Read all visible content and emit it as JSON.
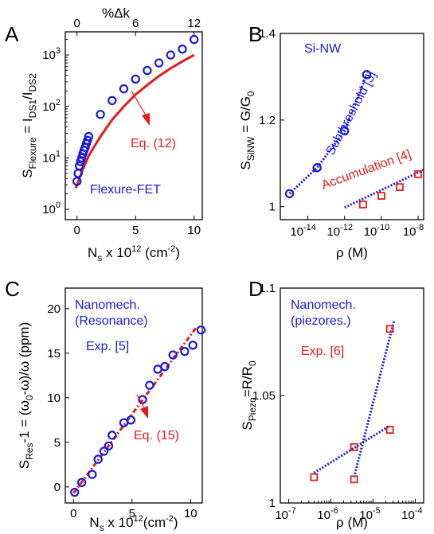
{
  "colors": {
    "blue": "#1a1ad8",
    "red": "#e81919",
    "axis": "#000000"
  },
  "chart_data": [
    {
      "id": "A",
      "type": "scatter",
      "letter": "A",
      "xlabel": "N",
      "xlabel_sub": "s",
      "xlabel_rest": " x 10",
      "xlabel_sup": "12",
      "xlabel_unit": " (cm",
      "xlabel_unit_sup": "-2",
      "xlabel_close": ")",
      "ylabel": "S",
      "ylabel_sub": "Flexure",
      "ylabel_mid": " = I",
      "ylabel_sub2": "DS1",
      "ylabel_mid2": "/I",
      "ylabel_sub3": "DS2",
      "top_label": "%Δk",
      "top_ticks": [
        "0",
        "6",
        "12"
      ],
      "x_ticks": [
        "0",
        "5",
        "10"
      ],
      "y_ticks": [
        {
          "base": "10",
          "exp": "0"
        },
        {
          "base": "10",
          "exp": "1"
        },
        {
          "base": "10",
          "exp": "2"
        },
        {
          "base": "10",
          "exp": "3"
        }
      ],
      "xlim": [
        -1,
        10.7
      ],
      "ylim_log10": [
        -0.2,
        3.45
      ],
      "yscale": "log",
      "series": [
        {
          "kind": "markers",
          "marker": "circle",
          "x": [
            0,
            0.1,
            0.2,
            0.3,
            0.4,
            0.5,
            0.6,
            0.7,
            0.8,
            0.9,
            1.0,
            2.0,
            3.0,
            4.0,
            5.0,
            6.0,
            7.0,
            8.0,
            9.0,
            10.0
          ],
          "y": [
            3.5,
            5,
            7,
            8.5,
            10,
            12,
            14,
            16,
            19,
            22,
            26,
            70,
            130,
            220,
            340,
            500,
            700,
            1000,
            1300,
            2000
          ]
        },
        {
          "kind": "line",
          "x": [
            -0.1,
            0,
            0.2,
            0.5,
            1.0,
            1.5,
            2.0,
            3.0,
            4.0,
            5.0,
            6.0,
            7.0,
            8.0,
            9.0,
            10.0
          ],
          "y": [
            2.6,
            3.0,
            4.0,
            6.0,
            11,
            17,
            26,
            55,
            100,
            170,
            260,
            390,
            550,
            750,
            1000
          ]
        }
      ],
      "annotations": [
        {
          "text": "Eq. (12)",
          "color": "red"
        },
        {
          "text": "Flexure-FET",
          "color": "blue"
        }
      ]
    },
    {
      "id": "B",
      "type": "scatter",
      "letter": "B",
      "xlabel": "ρ (M)",
      "ylabel": "S",
      "ylabel_sub": "SiNW",
      "ylabel_rest": " = G/G",
      "ylabel_sub2": "0",
      "x_ticks": [
        {
          "base": "10",
          "exp": "-14"
        },
        {
          "base": "10",
          "exp": "-12"
        },
        {
          "base": "10",
          "exp": "-10"
        },
        {
          "base": "10",
          "exp": "-8"
        }
      ],
      "y_ticks": [
        "1",
        "1.2",
        "1.4"
      ],
      "xlim_log10": [
        -15.5,
        -7.7
      ],
      "ylim": [
        0.97,
        1.4
      ],
      "xscale": "log",
      "series": [
        {
          "kind": "markers",
          "marker": "circle",
          "color": "blue",
          "x_log10": [
            -15,
            -13.5,
            -12,
            -10.8
          ],
          "y": [
            1.03,
            1.09,
            1.175,
            1.305
          ]
        },
        {
          "kind": "markers",
          "marker": "square",
          "color": "red",
          "x_log10": [
            -11,
            -10,
            -9,
            -8
          ],
          "y": [
            1.005,
            1.025,
            1.045,
            1.075
          ]
        },
        {
          "kind": "dotted",
          "color": "blue",
          "x_log10": [
            -15,
            -13.5,
            -12,
            -10.8
          ],
          "y": [
            1.03,
            1.09,
            1.175,
            1.305
          ]
        },
        {
          "kind": "dotted",
          "color": "blue",
          "x_log10": [
            -12,
            -7.7
          ],
          "y": [
            0.998,
            1.085
          ]
        }
      ],
      "annotations": [
        {
          "text": "Si-NW",
          "color": "blue"
        },
        {
          "text": "Subthreshold [3]",
          "color": "blue"
        },
        {
          "text": "Accumulation [4]",
          "color": "red"
        }
      ]
    },
    {
      "id": "C",
      "type": "scatter",
      "letter": "C",
      "xlabel": "N",
      "xlabel_sub": "s",
      "xlabel_rest": " x 10",
      "xlabel_sup": "12",
      "xlabel_unit": "(cm",
      "xlabel_unit_sup": "-2",
      "xlabel_close": ")",
      "ylabel": "S",
      "ylabel_sub": "Res",
      "ylabel_rest": "-1 = (ω",
      "ylabel_sub2": "0",
      "ylabel_rest2": "-ω)/ω (ppm)",
      "x_ticks": [
        "0",
        "5",
        "10"
      ],
      "y_ticks": [
        "0",
        "5",
        "10",
        "15",
        "20"
      ],
      "xlim": [
        -0.7,
        11
      ],
      "ylim": [
        -1.8,
        22.3
      ],
      "series": [
        {
          "kind": "markers",
          "marker": "circle",
          "color": "blue",
          "x": [
            0.1,
            0.7,
            1.6,
            2.1,
            2.6,
            3.0,
            3.3,
            4.3,
            4.9,
            5.9,
            6.5,
            7.2,
            7.8,
            8.5,
            9.5,
            10.2,
            10.9
          ],
          "y": [
            -0.6,
            0.5,
            1.4,
            3.1,
            4.0,
            4.6,
            5.8,
            7.2,
            7.5,
            9.8,
            11.4,
            13.2,
            13.5,
            14.8,
            15.2,
            15.9,
            17.6
          ]
        },
        {
          "kind": "dashdot",
          "color": "red",
          "x": [
            0,
            10.5
          ],
          "y": [
            -0.7,
            17.9
          ]
        }
      ],
      "annotations": [
        {
          "text": "Nanomech.",
          "color": "blue"
        },
        {
          "text": "(Resonance)",
          "color": "blue"
        },
        {
          "text": "Exp. [5]",
          "color": "blue"
        },
        {
          "text": "Eq. (15)",
          "color": "red"
        }
      ]
    },
    {
      "id": "D",
      "type": "scatter",
      "letter": "D",
      "xlabel": "ρ (M)",
      "ylabel": "S",
      "ylabel_sub": "Piezo",
      "ylabel_rest": "=R/R",
      "ylabel_sub2": "0",
      "x_ticks": [
        {
          "base": "10",
          "exp": "-7"
        },
        {
          "base": "10",
          "exp": "-6"
        },
        {
          "base": "10",
          "exp": "-5"
        },
        {
          "base": "10",
          "exp": "-4"
        }
      ],
      "y_ticks": [
        "1",
        "1.05",
        "1.1"
      ],
      "xlim_log10": [
        -7.2,
        -3.8
      ],
      "ylim": [
        1.0,
        1.1
      ],
      "xscale": "log",
      "series": [
        {
          "kind": "markers",
          "marker": "square",
          "color": "red",
          "x_log10": [
            -6.4,
            -5.45,
            -4.6
          ],
          "y": [
            1.012,
            1.026,
            1.034
          ]
        },
        {
          "kind": "markers",
          "marker": "square",
          "color": "red",
          "x_log10": [
            -5.45,
            -4.6
          ],
          "y": [
            1.011,
            1.081
          ]
        },
        {
          "kind": "dotted",
          "color": "blue",
          "x_log10": [
            -6.4,
            -4.6
          ],
          "y": [
            1.014,
            1.036
          ]
        },
        {
          "kind": "dotted",
          "color": "blue",
          "x_log10": [
            -5.45,
            -4.5
          ],
          "y": [
            1.012,
            1.085
          ]
        }
      ],
      "annotations": [
        {
          "text": "Nanomech.",
          "color": "blue"
        },
        {
          "text": "(piezores.)",
          "color": "blue"
        },
        {
          "text": "Exp. [6]",
          "color": "red"
        }
      ]
    }
  ]
}
